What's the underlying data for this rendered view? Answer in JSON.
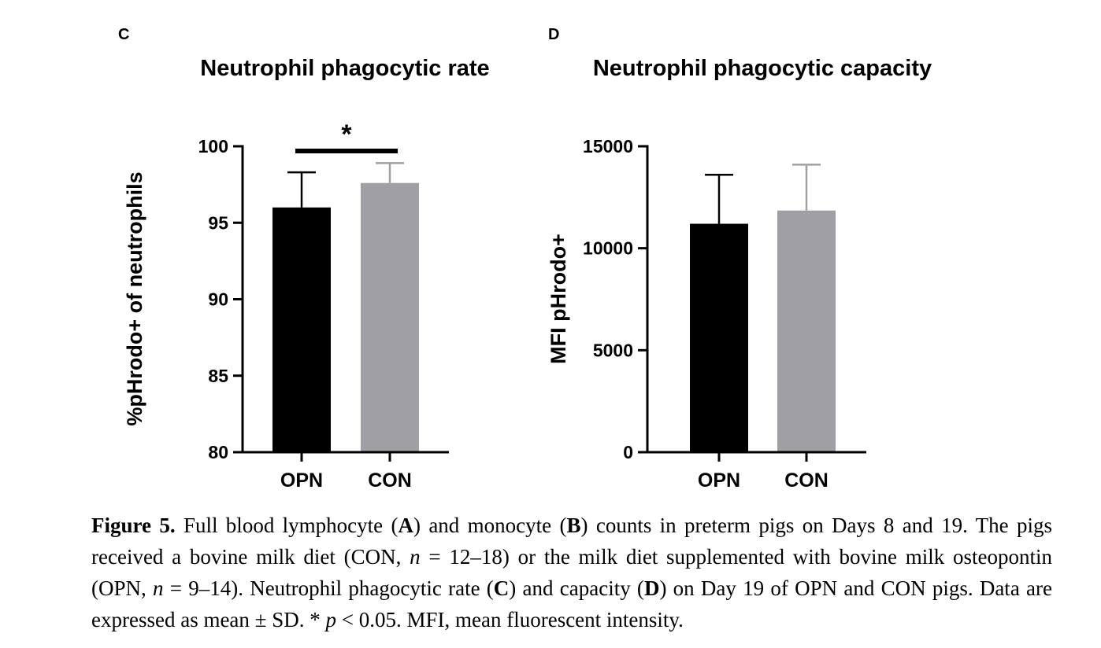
{
  "chart_data": [
    {
      "type": "bar",
      "panel": "C",
      "title": "Neutrophil phagocytic rate",
      "ylabel": "%pHrodo+ of neutrophils",
      "xlabel": "",
      "categories": [
        "OPN",
        "CON"
      ],
      "values": [
        96.0,
        97.6
      ],
      "error_upper": [
        98.3,
        98.9
      ],
      "colors": [
        "#000000",
        "#a0a0a4"
      ],
      "error_colors": [
        "#000000",
        "#a0a0a4"
      ],
      "ylim": [
        80,
        100
      ],
      "yticks": [
        80,
        85,
        90,
        95,
        100
      ],
      "ytick_labels": [
        "80",
        "85",
        "90",
        "95",
        "100"
      ],
      "significance": {
        "between": [
          "OPN",
          "CON"
        ],
        "label": "*"
      },
      "grid": false
    },
    {
      "type": "bar",
      "panel": "D",
      "title": "Neutrophil phagocytic capacity",
      "ylabel": "MFI pHrodo+",
      "xlabel": "",
      "categories": [
        "OPN",
        "CON"
      ],
      "values": [
        11200,
        11850
      ],
      "error_upper": [
        13600,
        14100
      ],
      "colors": [
        "#000000",
        "#a0a0a4"
      ],
      "error_colors": [
        "#000000",
        "#a0a0a4"
      ],
      "ylim": [
        0,
        15000
      ],
      "yticks": [
        0,
        5000,
        10000,
        15000
      ],
      "ytick_labels": [
        "0",
        "5000",
        "10000",
        "15000"
      ],
      "grid": false
    }
  ],
  "caption": {
    "label": "Figure 5.",
    "seg1": " Full blood lymphocyte (",
    "A": "A",
    "seg2": ") and monocyte (",
    "B": "B",
    "seg3": ") counts in preterm pigs on Days 8 and 19. The pigs received a bovine milk diet (CON, ",
    "n1": "n",
    "seg4": " = 12–18) or the milk diet supplemented with bovine milk osteopontin (OPN, ",
    "n2": "n",
    "seg5": " = 9–14). Neutrophil phagocytic rate (",
    "C": "C",
    "seg6": ") and capacity (",
    "D": "D",
    "seg7": ") on Day 19 of OPN and CON pigs. Data are expressed as mean ± SD. * ",
    "p": "p",
    "seg8": " < 0.05. MFI, mean fluorescent intensity."
  }
}
